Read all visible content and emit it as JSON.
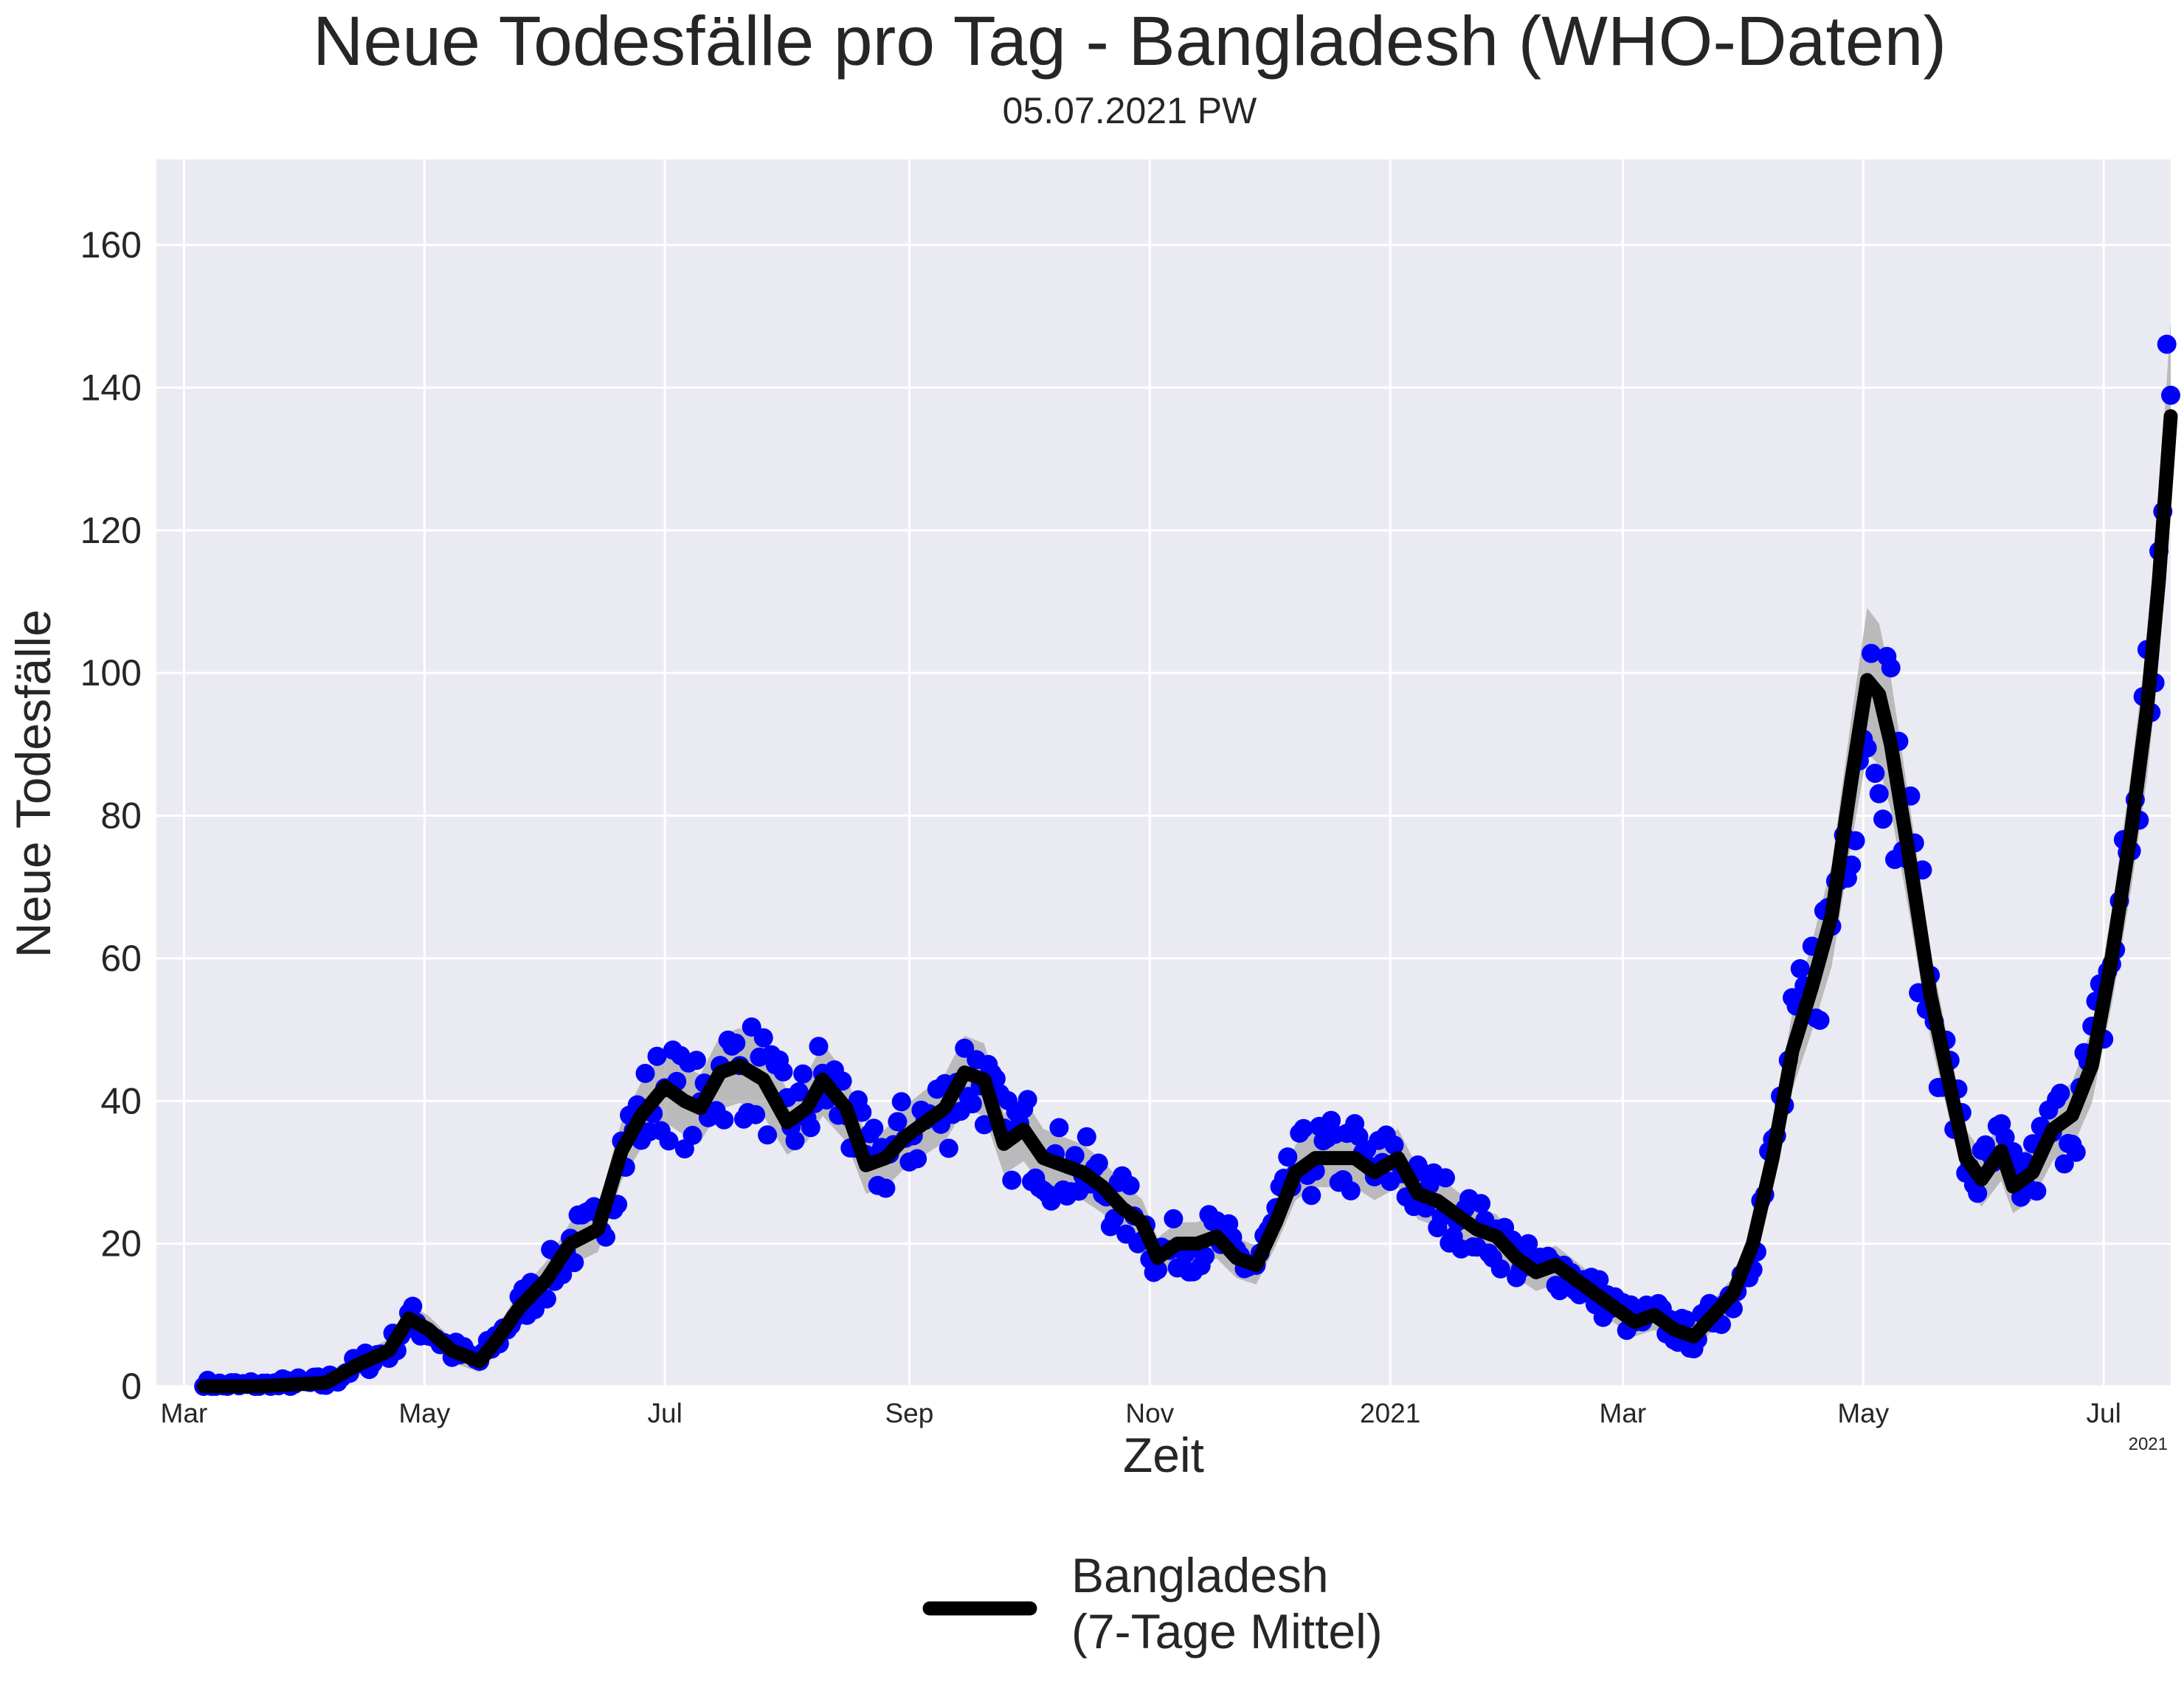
{
  "chart_data": {
    "type": "line",
    "title": "Neue Todesfälle pro Tag - Bangladesh (WHO-Daten)",
    "subtitle": "05.07.2021 PW",
    "xlabel": "Zeit",
    "ylabel": "Neue Todesfälle",
    "xlim": [
      "2020-02-23",
      "2021-07-18"
    ],
    "ylim": [
      0,
      172
    ],
    "grid": true,
    "legend_position": "bottom-center",
    "x_offset_label": "2021",
    "colors": {
      "background": "#eaeaf2",
      "grid": "#ffffff",
      "points": "#0000ff",
      "mean_line": "#000000",
      "band": "#aaaaaa"
    },
    "x_ticks": [
      {
        "date": "2020-03-01",
        "label": "Mar"
      },
      {
        "date": "2020-05-01",
        "label": "May"
      },
      {
        "date": "2020-07-01",
        "label": "Jul"
      },
      {
        "date": "2020-09-01",
        "label": "Sep"
      },
      {
        "date": "2020-11-01",
        "label": "Nov"
      },
      {
        "date": "2021-01-01",
        "label": "2021"
      },
      {
        "date": "2021-03-01",
        "label": "Mar"
      },
      {
        "date": "2021-05-01",
        "label": "May"
      },
      {
        "date": "2021-07-01",
        "label": "Jul"
      }
    ],
    "y_ticks": [
      0,
      20,
      40,
      60,
      80,
      100,
      120,
      140,
      160
    ],
    "series": [
      {
        "name": "Bangladesh\n(7-Tage Mittel)",
        "kind": "rolling-mean",
        "points": [
          [
            "2020-03-06",
            0
          ],
          [
            "2020-03-20",
            0
          ],
          [
            "2020-04-06",
            0.5
          ],
          [
            "2020-04-14",
            3
          ],
          [
            "2020-04-22",
            5
          ],
          [
            "2020-04-27",
            9.5
          ],
          [
            "2020-05-02",
            8
          ],
          [
            "2020-05-08",
            5
          ],
          [
            "2020-05-15",
            3.5
          ],
          [
            "2020-05-20",
            7
          ],
          [
            "2020-05-25",
            11
          ],
          [
            "2020-06-01",
            15
          ],
          [
            "2020-06-07",
            20
          ],
          [
            "2020-06-14",
            22
          ],
          [
            "2020-06-20",
            33
          ],
          [
            "2020-06-25",
            38
          ],
          [
            "2020-07-01",
            42
          ],
          [
            "2020-07-06",
            40
          ],
          [
            "2020-07-10",
            39
          ],
          [
            "2020-07-15",
            44
          ],
          [
            "2020-07-20",
            45
          ],
          [
            "2020-07-26",
            43
          ],
          [
            "2020-08-01",
            37
          ],
          [
            "2020-08-06",
            39
          ],
          [
            "2020-08-10",
            43
          ],
          [
            "2020-08-16",
            39
          ],
          [
            "2020-08-21",
            31
          ],
          [
            "2020-08-26",
            32
          ],
          [
            "2020-08-31",
            35
          ],
          [
            "2020-09-05",
            37
          ],
          [
            "2020-09-10",
            39
          ],
          [
            "2020-09-15",
            44
          ],
          [
            "2020-09-20",
            43
          ],
          [
            "2020-09-25",
            34
          ],
          [
            "2020-09-30",
            36
          ],
          [
            "2020-10-05",
            32
          ],
          [
            "2020-10-10",
            31
          ],
          [
            "2020-10-15",
            30
          ],
          [
            "2020-10-20",
            28
          ],
          [
            "2020-10-25",
            25
          ],
          [
            "2020-10-30",
            23
          ],
          [
            "2020-11-03",
            18
          ],
          [
            "2020-11-08",
            20
          ],
          [
            "2020-11-13",
            20
          ],
          [
            "2020-11-18",
            21
          ],
          [
            "2020-11-23",
            18
          ],
          [
            "2020-11-28",
            17
          ],
          [
            "2020-12-03",
            23
          ],
          [
            "2020-12-08",
            30
          ],
          [
            "2020-12-13",
            32
          ],
          [
            "2020-12-18",
            32
          ],
          [
            "2020-12-23",
            32
          ],
          [
            "2020-12-28",
            30
          ],
          [
            "2021-01-03",
            32
          ],
          [
            "2021-01-08",
            27
          ],
          [
            "2021-01-13",
            26
          ],
          [
            "2021-01-18",
            24
          ],
          [
            "2021-01-23",
            22
          ],
          [
            "2021-01-28",
            21
          ],
          [
            "2021-02-02",
            18
          ],
          [
            "2021-02-07",
            16
          ],
          [
            "2021-02-12",
            17
          ],
          [
            "2021-02-17",
            15
          ],
          [
            "2021-02-22",
            13
          ],
          [
            "2021-02-27",
            11
          ],
          [
            "2021-03-04",
            9
          ],
          [
            "2021-03-09",
            10
          ],
          [
            "2021-03-14",
            8
          ],
          [
            "2021-03-19",
            7
          ],
          [
            "2021-03-24",
            10
          ],
          [
            "2021-03-29",
            13
          ],
          [
            "2021-04-03",
            20
          ],
          [
            "2021-04-08",
            32
          ],
          [
            "2021-04-13",
            47
          ],
          [
            "2021-04-18",
            56
          ],
          [
            "2021-04-23",
            66
          ],
          [
            "2021-04-28",
            85
          ],
          [
            "2021-05-02",
            99
          ],
          [
            "2021-05-05",
            97
          ],
          [
            "2021-05-08",
            90
          ],
          [
            "2021-05-13",
            73
          ],
          [
            "2021-05-18",
            55
          ],
          [
            "2021-05-23",
            42
          ],
          [
            "2021-05-27",
            32
          ],
          [
            "2021-05-31",
            29
          ],
          [
            "2021-06-05",
            33
          ],
          [
            "2021-06-08",
            28
          ],
          [
            "2021-06-13",
            30
          ],
          [
            "2021-06-18",
            36
          ],
          [
            "2021-06-23",
            38
          ],
          [
            "2021-06-28",
            45
          ],
          [
            "2021-07-03",
            60
          ],
          [
            "2021-07-08",
            78
          ],
          [
            "2021-07-12",
            95
          ],
          [
            "2021-07-15",
            113
          ],
          [
            "2021-07-18",
            136
          ]
        ]
      }
    ]
  }
}
